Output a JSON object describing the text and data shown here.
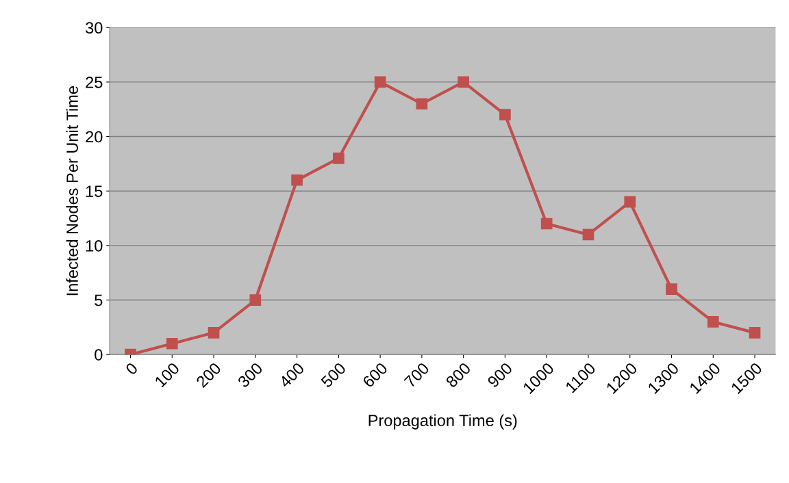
{
  "chart_data": {
    "type": "line",
    "xlabel": "Propagation Time (s)",
    "ylabel": "Infected Nodes Per Unit Time",
    "categories": [
      "0",
      "100",
      "200",
      "300",
      "400",
      "500",
      "600",
      "700",
      "800",
      "900",
      "1000",
      "1100",
      "1200",
      "1300",
      "1400",
      "1500"
    ],
    "series": [
      {
        "color": "#c0504d",
        "values": [
          0,
          1,
          2,
          5,
          16,
          18,
          25,
          23,
          25,
          22,
          12,
          11,
          14,
          6,
          3,
          2
        ]
      }
    ],
    "ylim": [
      0,
      30
    ],
    "yticks": [
      0,
      5,
      10,
      15,
      20,
      25,
      30
    ],
    "grid": "y",
    "marker": "square",
    "line_style": "solid"
  }
}
